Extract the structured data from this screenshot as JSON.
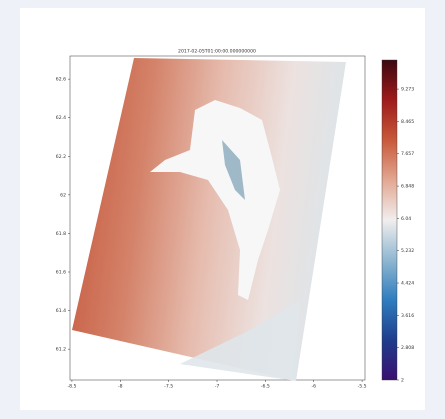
{
  "chart_data": {
    "type": "contourf",
    "title": "2017-02-05T01:00:00.000000000",
    "xlim": [
      -8.52,
      -5.47
    ],
    "xticks": [
      -8.5,
      -8.0,
      -7.5,
      -7.0,
      -6.5,
      -6.0,
      -5.5
    ],
    "ylim": [
      61.04,
      62.72
    ],
    "yticks": [
      61.2,
      61.4,
      61.6,
      61.8,
      62.0,
      62.2,
      62.4,
      62.6
    ],
    "clim": [
      2,
      10
    ],
    "cticks": [
      2.0,
      2.808,
      3.616,
      4.424,
      5.232,
      6.04,
      6.848,
      7.657,
      8.465,
      9.273
    ],
    "colormap": [
      "#3b0f70",
      "#1f3d8c",
      "#2f7dbf",
      "#8fb7d0",
      "#f1eeee",
      "#e2a792",
      "#c8593a",
      "#9e1b1b",
      "#3c0911"
    ]
  }
}
